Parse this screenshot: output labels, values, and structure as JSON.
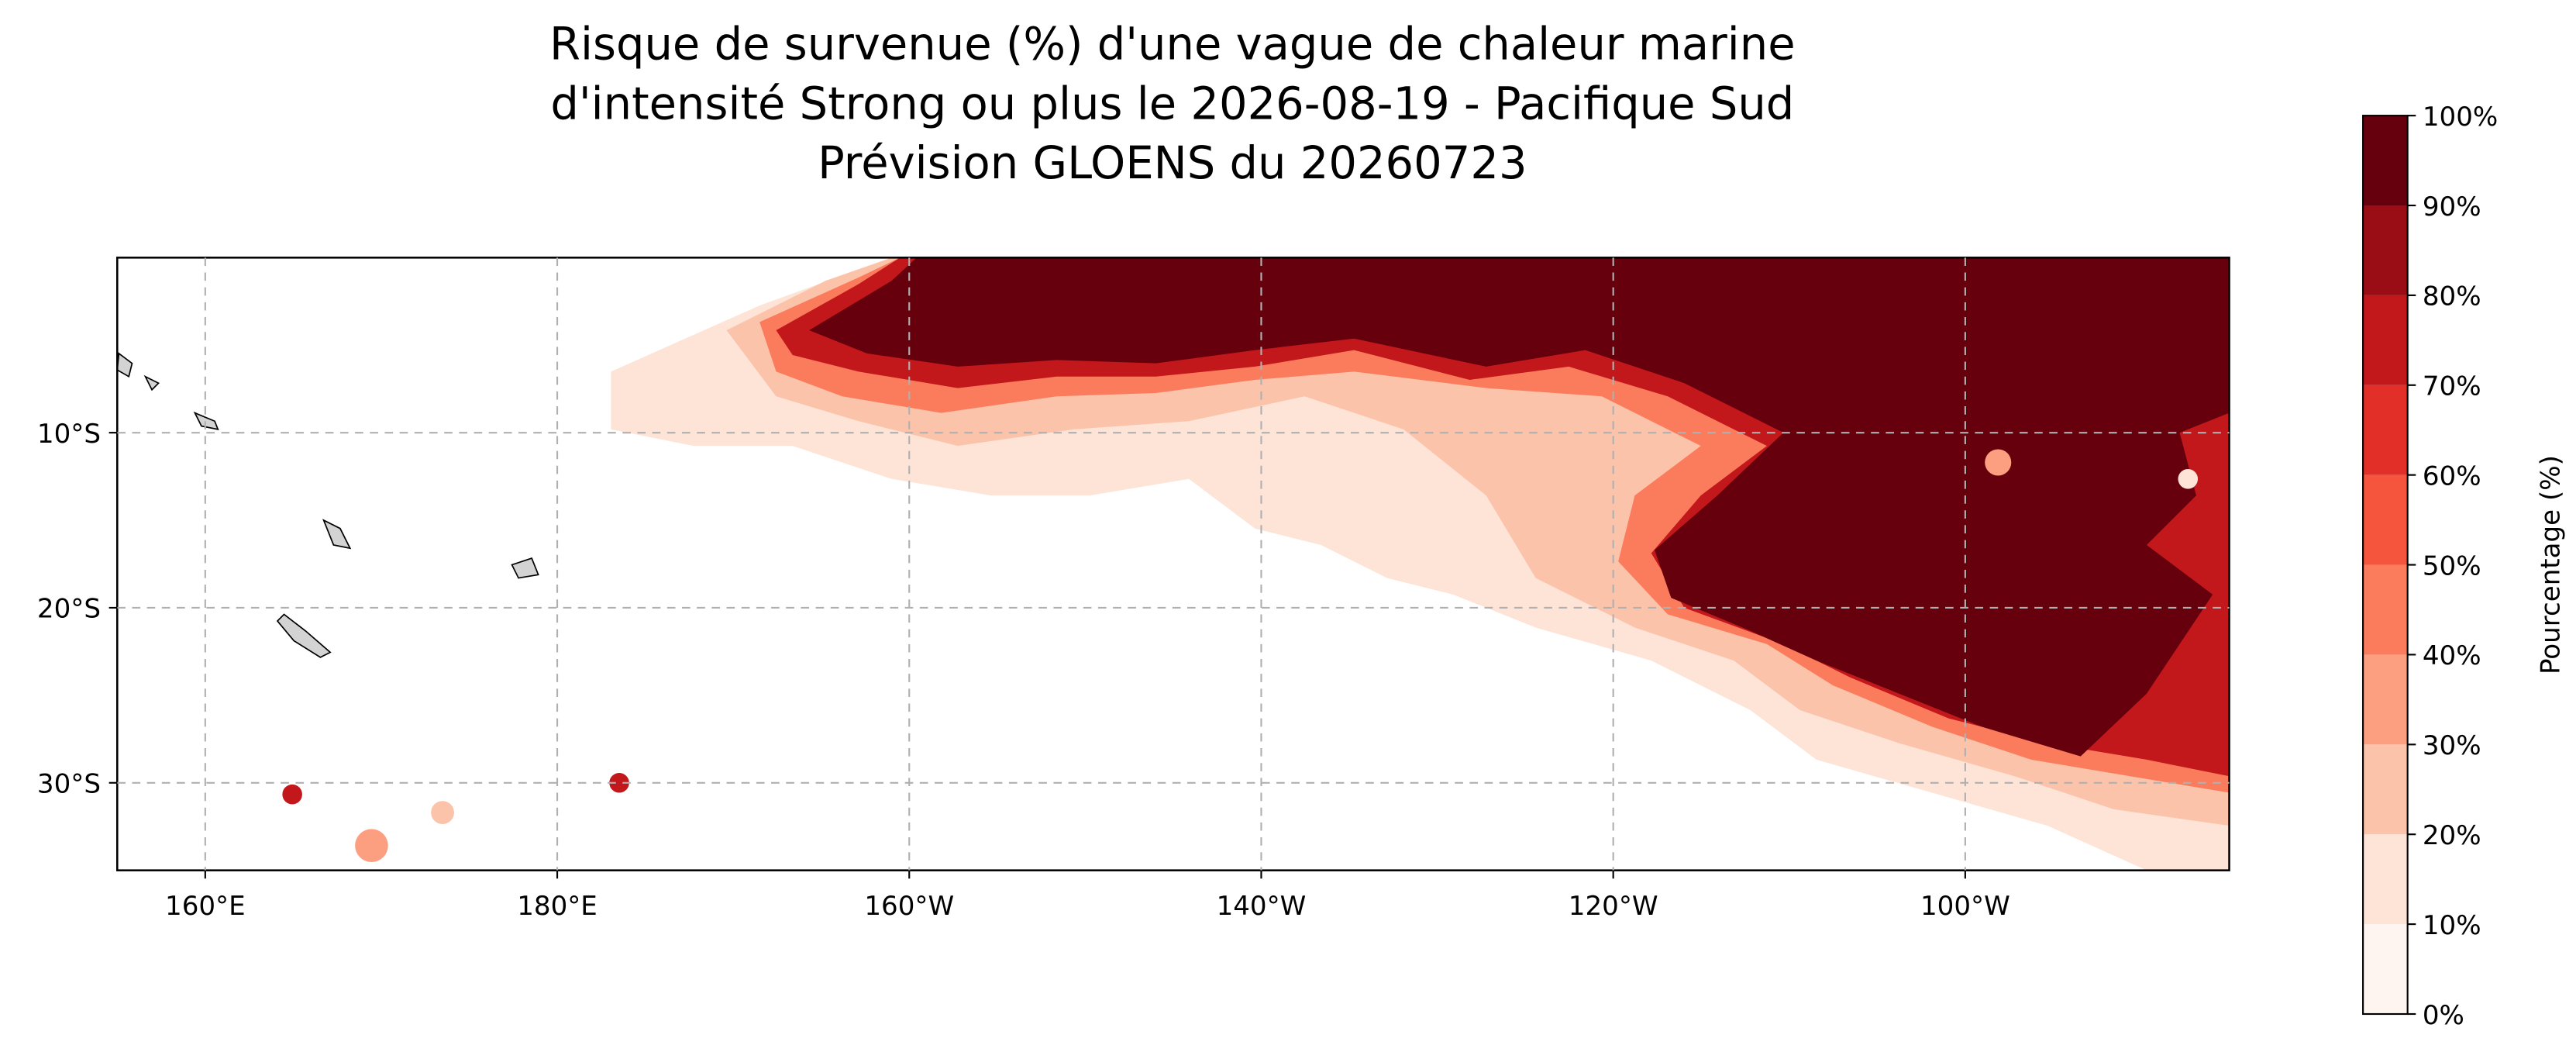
{
  "title": [
    "Risque de survenue (%) d'une vague de chaleur marine",
    "d'intensité Strong ou plus le 2026-08-19 - Pacifique Sud",
    "Prévision GLOENS du 20260723"
  ],
  "map": {
    "xlim": [
      155,
      275
    ],
    "ylim": [
      -35,
      0
    ],
    "xticks": [
      {
        "value": 160,
        "label": "160°E"
      },
      {
        "value": 180,
        "label": "180°E"
      },
      {
        "value": 200,
        "label": "160°W"
      },
      {
        "value": 220,
        "label": "140°W"
      },
      {
        "value": 240,
        "label": "120°W"
      },
      {
        "value": 260,
        "label": "100°W"
      }
    ],
    "yticks": [
      {
        "value": -10,
        "label": "10°S"
      },
      {
        "value": -20,
        "label": "20°S"
      },
      {
        "value": -30,
        "label": "30°S"
      }
    ],
    "grid": true
  },
  "colorbar": {
    "label": "Pourcentage (%)",
    "lim": [
      0,
      100
    ],
    "ticks": [
      {
        "value": 0,
        "label": "0%"
      },
      {
        "value": 10,
        "label": "10%"
      },
      {
        "value": 20,
        "label": "20%"
      },
      {
        "value": 30,
        "label": "30%"
      },
      {
        "value": 40,
        "label": "40%"
      },
      {
        "value": 50,
        "label": "50%"
      },
      {
        "value": 60,
        "label": "60%"
      },
      {
        "value": 70,
        "label": "70%"
      },
      {
        "value": 80,
        "label": "80%"
      },
      {
        "value": 90,
        "label": "90%"
      },
      {
        "value": 100,
        "label": "100%"
      }
    ],
    "colors": [
      "#fff5f0",
      "#fee3d7",
      "#fcc3ab",
      "#fc9f81",
      "#fb7c5c",
      "#f5553c",
      "#e23028",
      "#c2181c",
      "#9b0d14",
      "#67000d"
    ]
  }
}
